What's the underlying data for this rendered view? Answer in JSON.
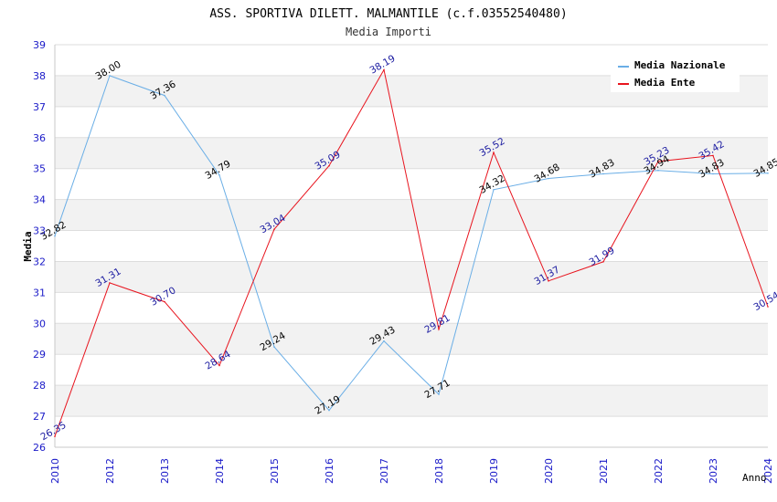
{
  "chart_data": {
    "type": "line",
    "title": "ASS. SPORTIVA DILETT. MALMANTILE (c.f.03552540480)",
    "subtitle": "Media Importi",
    "xlabel": "Anno",
    "ylabel": "Media",
    "ylim": [
      26,
      39
    ],
    "yticks": [
      "26",
      "27",
      "28",
      "29",
      "30",
      "31",
      "32",
      "33",
      "34",
      "35",
      "36",
      "37",
      "38",
      "39"
    ],
    "categories": [
      "2010",
      "2012",
      "2013",
      "2014",
      "2015",
      "2016",
      "2017",
      "2018",
      "2019",
      "2020",
      "2021",
      "2022",
      "2023",
      "2024"
    ],
    "series": [
      {
        "name": "Media Nazionale",
        "color": "#6aaee6",
        "label_color": "#000000",
        "values": [
          32.82,
          38.0,
          37.36,
          34.79,
          29.24,
          27.19,
          29.43,
          27.71,
          34.32,
          34.68,
          34.83,
          34.94,
          34.83,
          34.85
        ],
        "labels": [
          "32.82",
          "38.00",
          "37.36",
          "34.79",
          "29.24",
          "27.19",
          "29.43",
          "27.71",
          "34.32",
          "34.68",
          "34.83",
          "34.94",
          "34.83",
          "34.85"
        ]
      },
      {
        "name": "Media Ente",
        "color": "#e8141e",
        "label_color": "#1a1aa0",
        "values": [
          26.35,
          31.31,
          30.7,
          28.64,
          33.04,
          35.09,
          38.19,
          29.81,
          35.52,
          31.37,
          31.99,
          35.23,
          35.42,
          30.54
        ],
        "labels": [
          "26.35",
          "31.31",
          "30.70",
          "28.64",
          "33.04",
          "35.09",
          "38.19",
          "29.81",
          "35.52",
          "31.37",
          "31.99",
          "35.23",
          "35.42",
          "30.54"
        ]
      }
    ],
    "legend_position": "top-right",
    "grid": true,
    "colors": {
      "band": "#f2f2f2",
      "grid": "#dddddd",
      "tick_label": "#1a1ac8",
      "axis_title": "#000000"
    }
  }
}
